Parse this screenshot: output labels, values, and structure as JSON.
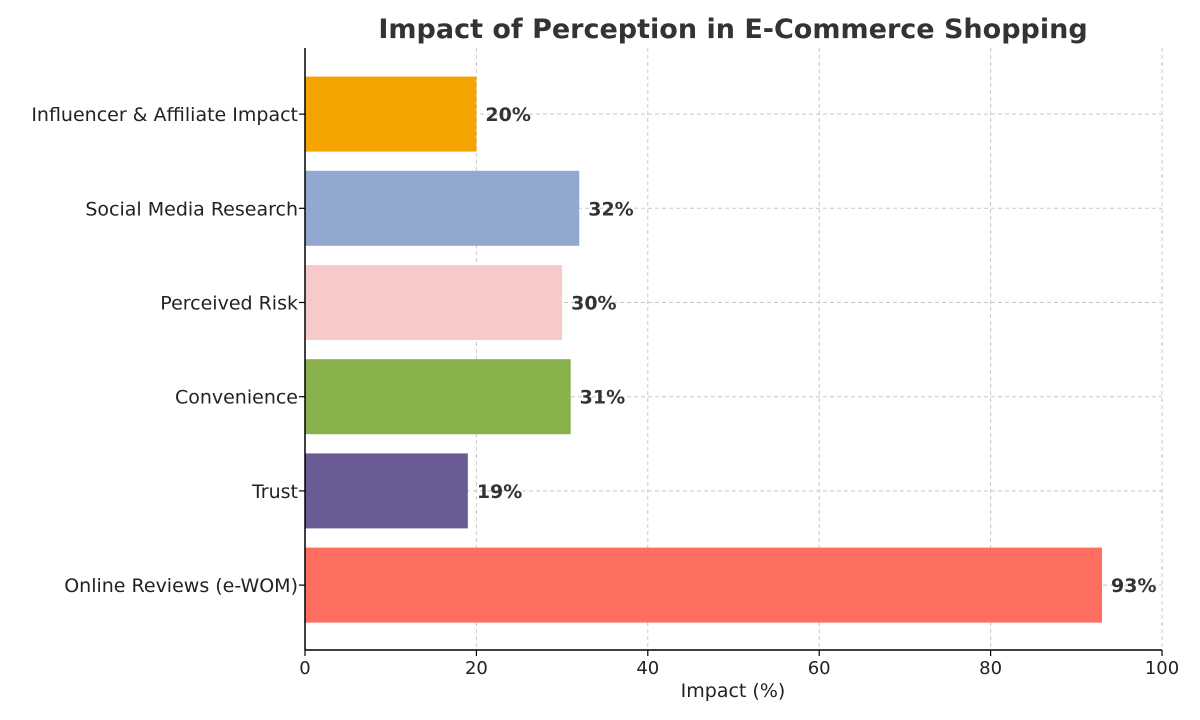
{
  "chart_data": {
    "type": "bar",
    "orientation": "horizontal",
    "title": "Impact of Perception in E-Commerce Shopping",
    "xlabel": "Impact (%)",
    "ylabel": "",
    "xlim": [
      0,
      100
    ],
    "xticks": [
      0,
      20,
      40,
      60,
      80,
      100
    ],
    "grid": true,
    "categories": [
      "Online Reviews (e-WOM)",
      "Trust",
      "Convenience",
      "Perceived Risk",
      "Social Media Research",
      "Influencer & Affiliate Impact"
    ],
    "values": [
      93,
      19,
      31,
      30,
      32,
      20
    ],
    "value_labels": [
      "93%",
      "19%",
      "31%",
      "30%",
      "32%",
      "20%"
    ],
    "colors": [
      "#ff6f61",
      "#6b5b95",
      "#88b04b",
      "#f7cac9",
      "#92a8d1",
      "#f4a300"
    ]
  }
}
